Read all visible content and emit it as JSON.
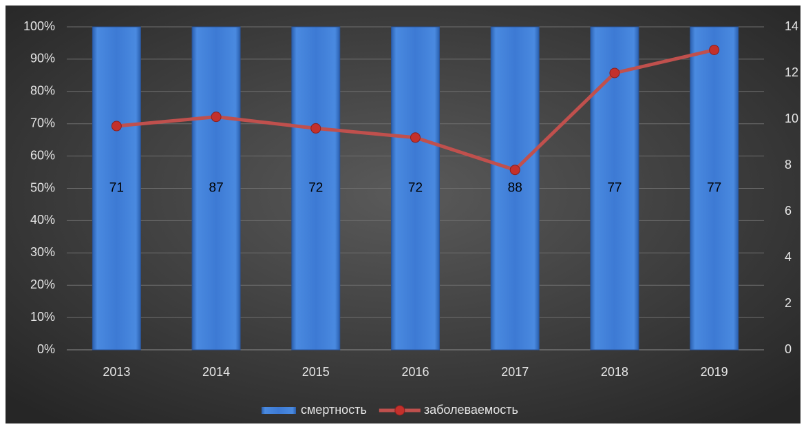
{
  "chart_data": {
    "type": "bar",
    "stacking": "percent",
    "categories": [
      "2013",
      "2014",
      "2015",
      "2016",
      "2017",
      "2018",
      "2019"
    ],
    "series": [
      {
        "name": "смертность",
        "color": "#3a78d0",
        "values": [
          71,
          87,
          72,
          72,
          88,
          77,
          77
        ],
        "data_labels": true
      },
      {
        "name": "заболеваемость",
        "color": "#c0504d",
        "type": "line",
        "axis": "y2",
        "values": [
          9.7,
          10.1,
          9.6,
          9.2,
          7.8,
          12.0,
          13.0
        ]
      }
    ],
    "ylim": [
      0,
      100
    ],
    "yticks": [
      {
        "value": 0,
        "label": "0%"
      },
      {
        "value": 10,
        "label": "10%"
      },
      {
        "value": 20,
        "label": "20%"
      },
      {
        "value": 30,
        "label": "30%"
      },
      {
        "value": 40,
        "label": "40%"
      },
      {
        "value": 50,
        "label": "50%"
      },
      {
        "value": 60,
        "label": "60%"
      },
      {
        "value": 70,
        "label": "70%"
      },
      {
        "value": 80,
        "label": "80%"
      },
      {
        "value": 90,
        "label": "90%"
      },
      {
        "value": 100,
        "label": "100%"
      }
    ],
    "y2lim": [
      0,
      14
    ],
    "y2ticks": [
      0,
      2,
      4,
      6,
      8,
      10,
      12,
      14
    ],
    "grid": true,
    "legend": "bottom"
  }
}
